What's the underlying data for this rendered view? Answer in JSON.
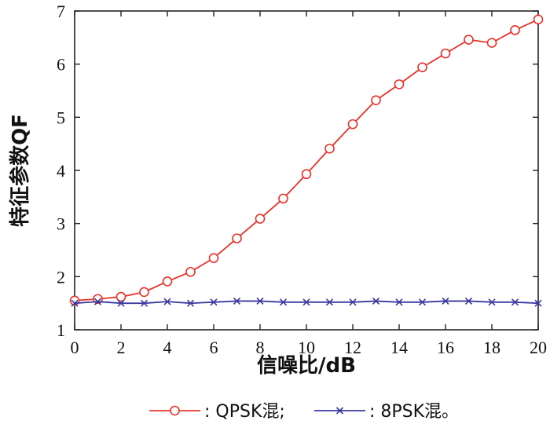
{
  "chart_data": {
    "type": "line",
    "xlabel": "信噪比/dB",
    "ylabel": "特征参数QF",
    "xlim": [
      0,
      20
    ],
    "ylim": [
      1,
      7
    ],
    "x_ticks": [
      0,
      2,
      4,
      6,
      8,
      10,
      12,
      14,
      16,
      18,
      20
    ],
    "y_ticks": [
      1,
      2,
      3,
      4,
      5,
      6,
      7
    ],
    "x": [
      0,
      1,
      2,
      3,
      4,
      5,
      6,
      7,
      8,
      9,
      10,
      11,
      12,
      13,
      14,
      15,
      16,
      17,
      18,
      19,
      20
    ],
    "series": [
      {
        "name": ": QPSK混;",
        "color": "#e8332a",
        "marker": "circle",
        "values": [
          1.55,
          1.58,
          1.62,
          1.71,
          1.91,
          2.09,
          2.35,
          2.72,
          3.09,
          3.47,
          3.93,
          4.41,
          4.87,
          5.32,
          5.62,
          5.94,
          6.2,
          6.46,
          6.4,
          6.64,
          6.84
        ]
      },
      {
        "name": ": 8PSK混。",
        "color": "#3a3aa0",
        "marker": "x",
        "values": [
          1.5,
          1.53,
          1.5,
          1.5,
          1.53,
          1.5,
          1.52,
          1.54,
          1.54,
          1.52,
          1.52,
          1.52,
          1.52,
          1.54,
          1.52,
          1.52,
          1.54,
          1.54,
          1.52,
          1.52,
          1.5
        ]
      }
    ],
    "grid": false,
    "legend_position": "bottom"
  }
}
